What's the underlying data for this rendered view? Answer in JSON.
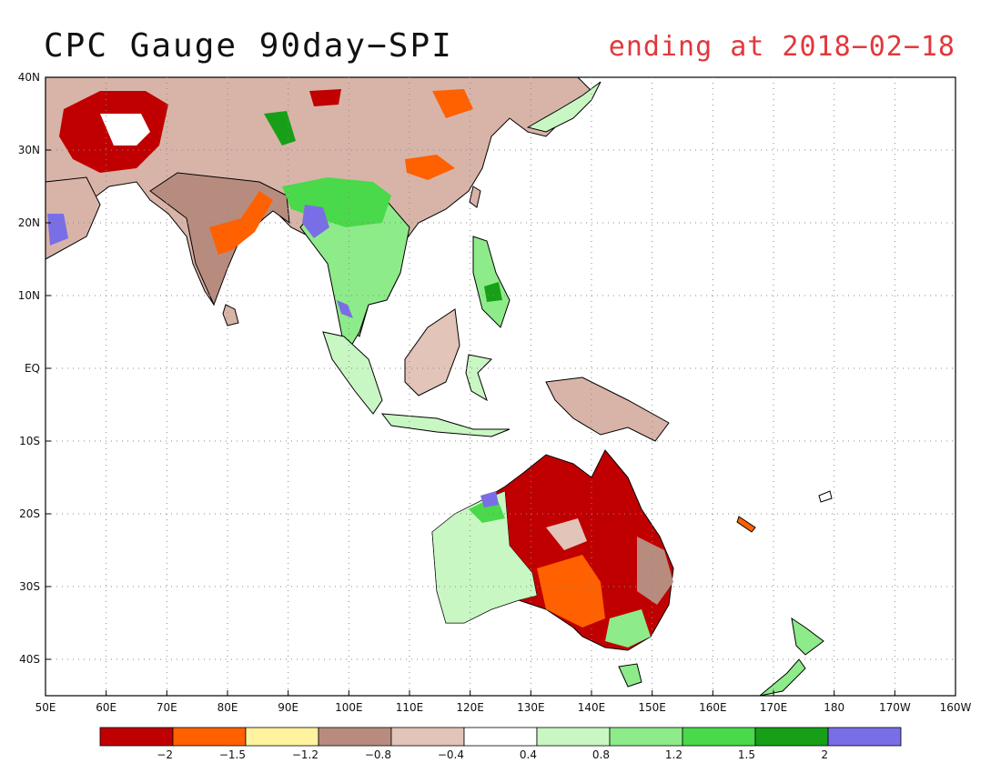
{
  "map": {
    "title": "CPC Gauge 90day−SPI",
    "subtitle": "ending at 2018−02−18",
    "subtitle_color": "#e0383d",
    "lat_labels": [
      "40N",
      "30N",
      "20N",
      "10N",
      "EQ",
      "10S",
      "20S",
      "30S",
      "40S"
    ],
    "lon_labels": [
      "50E",
      "60E",
      "70E",
      "80E",
      "90E",
      "100E",
      "110E",
      "120E",
      "130E",
      "140E",
      "150E",
      "160E",
      "170E",
      "180",
      "170W",
      "160W"
    ]
  },
  "legend": {
    "colors": [
      "#c00000",
      "#ff6000",
      "#fff3a0",
      "#b78c7f",
      "#e2c4b8",
      "#ffffff",
      "#c9f7c3",
      "#8eeb8a",
      "#4ad94a",
      "#17a017",
      "#7a6ee6"
    ],
    "labels": [
      "−2",
      "−1.5",
      "−1.2",
      "−0.8",
      "−0.4",
      "0.4",
      "0.8",
      "1.2",
      "1.5",
      "2"
    ]
  }
}
